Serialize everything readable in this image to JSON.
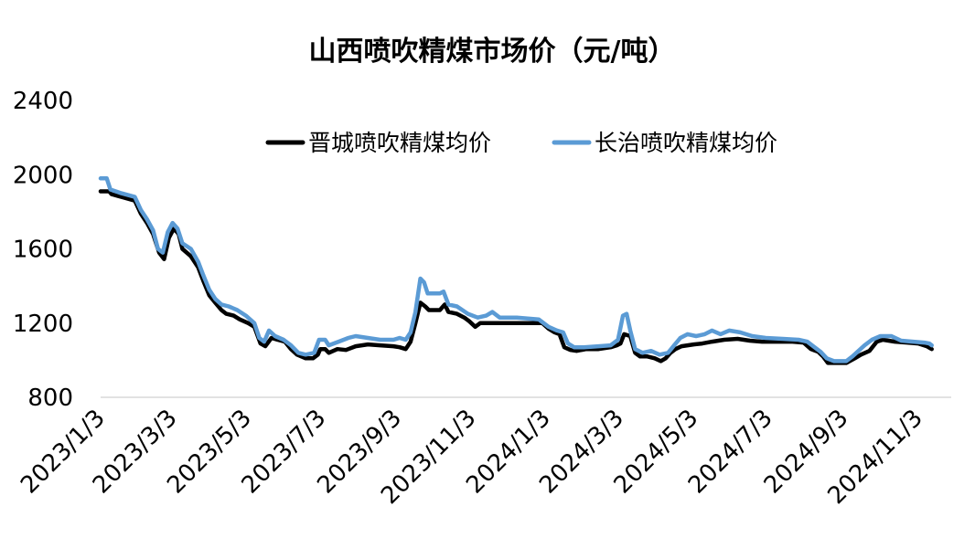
{
  "chart_data": {
    "type": "line",
    "title": "山西喷吹精煤市场价（元/吨）",
    "xlabel": "",
    "ylabel": "",
    "ylim": [
      800,
      2400
    ],
    "yticks": [
      800,
      1200,
      1600,
      2000,
      2400
    ],
    "xlim": [
      "2023/1/3",
      "2024/11/30"
    ],
    "xticks": [
      "2023/1/3",
      "2023/3/3",
      "2023/5/3",
      "2023/7/3",
      "2023/9/3",
      "2023/11/3",
      "2024/1/3",
      "2024/3/3",
      "2024/5/3",
      "2024/7/3",
      "2024/9/3",
      "2024/11/3"
    ],
    "grid": false,
    "legend_position": "top",
    "series": [
      {
        "name": "晋城喷吹精煤均价",
        "color": "#000000",
        "points": [
          [
            "2023/1/3",
            1910
          ],
          [
            "2023/1/10",
            1910
          ],
          [
            "2023/1/12",
            1895
          ],
          [
            "2023/1/20",
            1880
          ],
          [
            "2023/1/31",
            1860
          ],
          [
            "2023/2/5",
            1790
          ],
          [
            "2023/2/10",
            1740
          ],
          [
            "2023/2/15",
            1680
          ],
          [
            "2023/2/20",
            1580
          ],
          [
            "2023/2/24",
            1545
          ],
          [
            "2023/2/28",
            1660
          ],
          [
            "2023/3/4",
            1710
          ],
          [
            "2023/3/8",
            1680
          ],
          [
            "2023/3/11",
            1600
          ],
          [
            "2023/3/18",
            1560
          ],
          [
            "2023/3/24",
            1500
          ],
          [
            "2023/3/28",
            1430
          ],
          [
            "2023/4/2",
            1350
          ],
          [
            "2023/4/7",
            1310
          ],
          [
            "2023/4/12",
            1270
          ],
          [
            "2023/4/16",
            1250
          ],
          [
            "2023/4/22",
            1240
          ],
          [
            "2023/4/27",
            1220
          ],
          [
            "2023/5/4",
            1200
          ],
          [
            "2023/5/9",
            1180
          ],
          [
            "2023/5/14",
            1090
          ],
          [
            "2023/5/18",
            1075
          ],
          [
            "2023/5/23",
            1120
          ],
          [
            "2023/5/28",
            1110
          ],
          [
            "2023/6/3",
            1100
          ],
          [
            "2023/6/8",
            1060
          ],
          [
            "2023/6/13",
            1030
          ],
          [
            "2023/6/20",
            1010
          ],
          [
            "2023/6/26",
            1010
          ],
          [
            "2023/6/30",
            1030
          ],
          [
            "2023/7/2",
            1060
          ],
          [
            "2023/7/6",
            1060
          ],
          [
            "2023/7/9",
            1040
          ],
          [
            "2023/7/16",
            1060
          ],
          [
            "2023/7/23",
            1055
          ],
          [
            "2023/7/31",
            1075
          ],
          [
            "2023/8/10",
            1085
          ],
          [
            "2023/8/20",
            1080
          ],
          [
            "2023/8/31",
            1075
          ],
          [
            "2023/9/5",
            1070
          ],
          [
            "2023/9/10",
            1060
          ],
          [
            "2023/9/14",
            1100
          ],
          [
            "2023/9/18",
            1200
          ],
          [
            "2023/9/22",
            1310
          ],
          [
            "2023/9/26",
            1290
          ],
          [
            "2023/9/29",
            1270
          ],
          [
            "2023/10/8",
            1270
          ],
          [
            "2023/10/12",
            1300
          ],
          [
            "2023/10/15",
            1260
          ],
          [
            "2023/10/22",
            1250
          ],
          [
            "2023/10/28",
            1230
          ],
          [
            "2023/11/1",
            1210
          ],
          [
            "2023/11/6",
            1180
          ],
          [
            "2023/11/10",
            1200
          ],
          [
            "2023/11/16",
            1200
          ],
          [
            "2023/12/1",
            1200
          ],
          [
            "2023/12/15",
            1200
          ],
          [
            "2023/12/31",
            1200
          ],
          [
            "2024/1/5",
            1170
          ],
          [
            "2024/1/10",
            1150
          ],
          [
            "2024/1/14",
            1140
          ],
          [
            "2024/1/18",
            1070
          ],
          [
            "2024/1/23",
            1055
          ],
          [
            "2024/1/28",
            1050
          ],
          [
            "2024/2/5",
            1060
          ],
          [
            "2024/2/15",
            1060
          ],
          [
            "2024/2/25",
            1070
          ],
          [
            "2024/3/1",
            1080
          ],
          [
            "2024/3/4",
            1090
          ],
          [
            "2024/3/7",
            1140
          ],
          [
            "2024/3/12",
            1130
          ],
          [
            "2024/3/16",
            1040
          ],
          [
            "2024/3/20",
            1020
          ],
          [
            "2024/3/26",
            1020
          ],
          [
            "2024/4/1",
            1010
          ],
          [
            "2024/4/6",
            995
          ],
          [
            "2024/4/10",
            1010
          ],
          [
            "2024/4/14",
            1040
          ],
          [
            "2024/4/18",
            1060
          ],
          [
            "2024/4/23",
            1075
          ],
          [
            "2024/4/28",
            1080
          ],
          [
            "2024/5/3",
            1085
          ],
          [
            "2024/5/10",
            1090
          ],
          [
            "2024/5/18",
            1100
          ],
          [
            "2024/5/28",
            1110
          ],
          [
            "2024/6/8",
            1115
          ],
          [
            "2024/6/18",
            1105
          ],
          [
            "2024/6/28",
            1100
          ],
          [
            "2024/7/10",
            1100
          ],
          [
            "2024/7/23",
            1100
          ],
          [
            "2024/8/1",
            1095
          ],
          [
            "2024/8/7",
            1060
          ],
          [
            "2024/8/13",
            1045
          ],
          [
            "2024/8/17",
            1020
          ],
          [
            "2024/8/21",
            985
          ],
          [
            "2024/8/28",
            985
          ],
          [
            "2024/9/5",
            985
          ],
          [
            "2024/9/12",
            1010
          ],
          [
            "2024/9/17",
            1030
          ],
          [
            "2024/9/24",
            1050
          ],
          [
            "2024/9/30",
            1100
          ],
          [
            "2024/10/5",
            1110
          ],
          [
            "2024/10/15",
            1100
          ],
          [
            "2024/10/25",
            1095
          ],
          [
            "2024/11/3",
            1090
          ],
          [
            "2024/11/10",
            1075
          ],
          [
            "2024/11/14",
            1060
          ]
        ]
      },
      {
        "name": "长治喷吹精煤均价",
        "color": "#5b9bd5",
        "points": [
          [
            "2023/1/3",
            1980
          ],
          [
            "2023/1/8",
            1980
          ],
          [
            "2023/1/11",
            1920
          ],
          [
            "2023/1/20",
            1900
          ],
          [
            "2023/1/31",
            1880
          ],
          [
            "2023/2/5",
            1810
          ],
          [
            "2023/2/10",
            1760
          ],
          [
            "2023/2/15",
            1700
          ],
          [
            "2023/2/19",
            1600
          ],
          [
            "2023/2/23",
            1580
          ],
          [
            "2023/2/27",
            1690
          ],
          [
            "2023/3/3",
            1740
          ],
          [
            "2023/3/7",
            1710
          ],
          [
            "2023/3/11",
            1630
          ],
          [
            "2023/3/18",
            1600
          ],
          [
            "2023/3/24",
            1530
          ],
          [
            "2023/3/28",
            1460
          ],
          [
            "2023/4/2",
            1380
          ],
          [
            "2023/4/7",
            1330
          ],
          [
            "2023/4/12",
            1300
          ],
          [
            "2023/4/18",
            1290
          ],
          [
            "2023/4/25",
            1270
          ],
          [
            "2023/5/2",
            1240
          ],
          [
            "2023/5/9",
            1200
          ],
          [
            "2023/5/13",
            1120
          ],
          [
            "2023/5/17",
            1100
          ],
          [
            "2023/5/21",
            1160
          ],
          [
            "2023/5/26",
            1130
          ],
          [
            "2023/6/2",
            1110
          ],
          [
            "2023/6/8",
            1080
          ],
          [
            "2023/6/14",
            1040
          ],
          [
            "2023/6/20",
            1030
          ],
          [
            "2023/6/27",
            1040
          ],
          [
            "2023/7/1",
            1110
          ],
          [
            "2023/7/6",
            1110
          ],
          [
            "2023/7/9",
            1080
          ],
          [
            "2023/7/17",
            1100
          ],
          [
            "2023/7/25",
            1120
          ],
          [
            "2023/7/31",
            1130
          ],
          [
            "2023/8/10",
            1120
          ],
          [
            "2023/8/20",
            1110
          ],
          [
            "2023/8/31",
            1110
          ],
          [
            "2023/9/5",
            1120
          ],
          [
            "2023/9/10",
            1110
          ],
          [
            "2023/9/14",
            1150
          ],
          [
            "2023/9/18",
            1260
          ],
          [
            "2023/9/22",
            1440
          ],
          [
            "2023/9/25",
            1420
          ],
          [
            "2023/9/28",
            1360
          ],
          [
            "2023/10/8",
            1360
          ],
          [
            "2023/10/11",
            1370
          ],
          [
            "2023/10/15",
            1300
          ],
          [
            "2023/10/22",
            1290
          ],
          [
            "2023/10/31",
            1250
          ],
          [
            "2023/11/8",
            1230
          ],
          [
            "2023/11/15",
            1240
          ],
          [
            "2023/11/20",
            1260
          ],
          [
            "2023/11/26",
            1230
          ],
          [
            "2023/12/10",
            1230
          ],
          [
            "2023/12/28",
            1220
          ],
          [
            "2024/1/5",
            1180
          ],
          [
            "2024/1/12",
            1160
          ],
          [
            "2024/1/17",
            1150
          ],
          [
            "2024/1/21",
            1090
          ],
          [
            "2024/1/26",
            1070
          ],
          [
            "2024/2/3",
            1070
          ],
          [
            "2024/2/15",
            1075
          ],
          [
            "2024/2/25",
            1080
          ],
          [
            "2024/3/2",
            1110
          ],
          [
            "2024/3/6",
            1240
          ],
          [
            "2024/3/9",
            1250
          ],
          [
            "2024/3/12",
            1160
          ],
          [
            "2024/3/16",
            1060
          ],
          [
            "2024/3/22",
            1040
          ],
          [
            "2024/3/29",
            1050
          ],
          [
            "2024/4/5",
            1030
          ],
          [
            "2024/4/12",
            1040
          ],
          [
            "2024/4/17",
            1080
          ],
          [
            "2024/4/22",
            1120
          ],
          [
            "2024/4/28",
            1140
          ],
          [
            "2024/5/5",
            1130
          ],
          [
            "2024/5/12",
            1140
          ],
          [
            "2024/5/18",
            1160
          ],
          [
            "2024/5/25",
            1140
          ],
          [
            "2024/6/1",
            1160
          ],
          [
            "2024/6/10",
            1150
          ],
          [
            "2024/6/20",
            1130
          ],
          [
            "2024/7/1",
            1120
          ],
          [
            "2024/7/15",
            1115
          ],
          [
            "2024/7/28",
            1110
          ],
          [
            "2024/8/4",
            1100
          ],
          [
            "2024/8/10",
            1070
          ],
          [
            "2024/8/15",
            1045
          ],
          [
            "2024/8/20",
            1010
          ],
          [
            "2024/8/26",
            995
          ],
          [
            "2024/9/5",
            995
          ],
          [
            "2024/9/10",
            1020
          ],
          [
            "2024/9/15",
            1050
          ],
          [
            "2024/9/20",
            1080
          ],
          [
            "2024/9/26",
            1110
          ],
          [
            "2024/10/3",
            1130
          ],
          [
            "2024/10/12",
            1130
          ],
          [
            "2024/10/20",
            1105
          ],
          [
            "2024/10/30",
            1100
          ],
          [
            "2024/11/8",
            1095
          ],
          [
            "2024/11/12",
            1090
          ],
          [
            "2024/11/14",
            1080
          ]
        ]
      }
    ]
  }
}
